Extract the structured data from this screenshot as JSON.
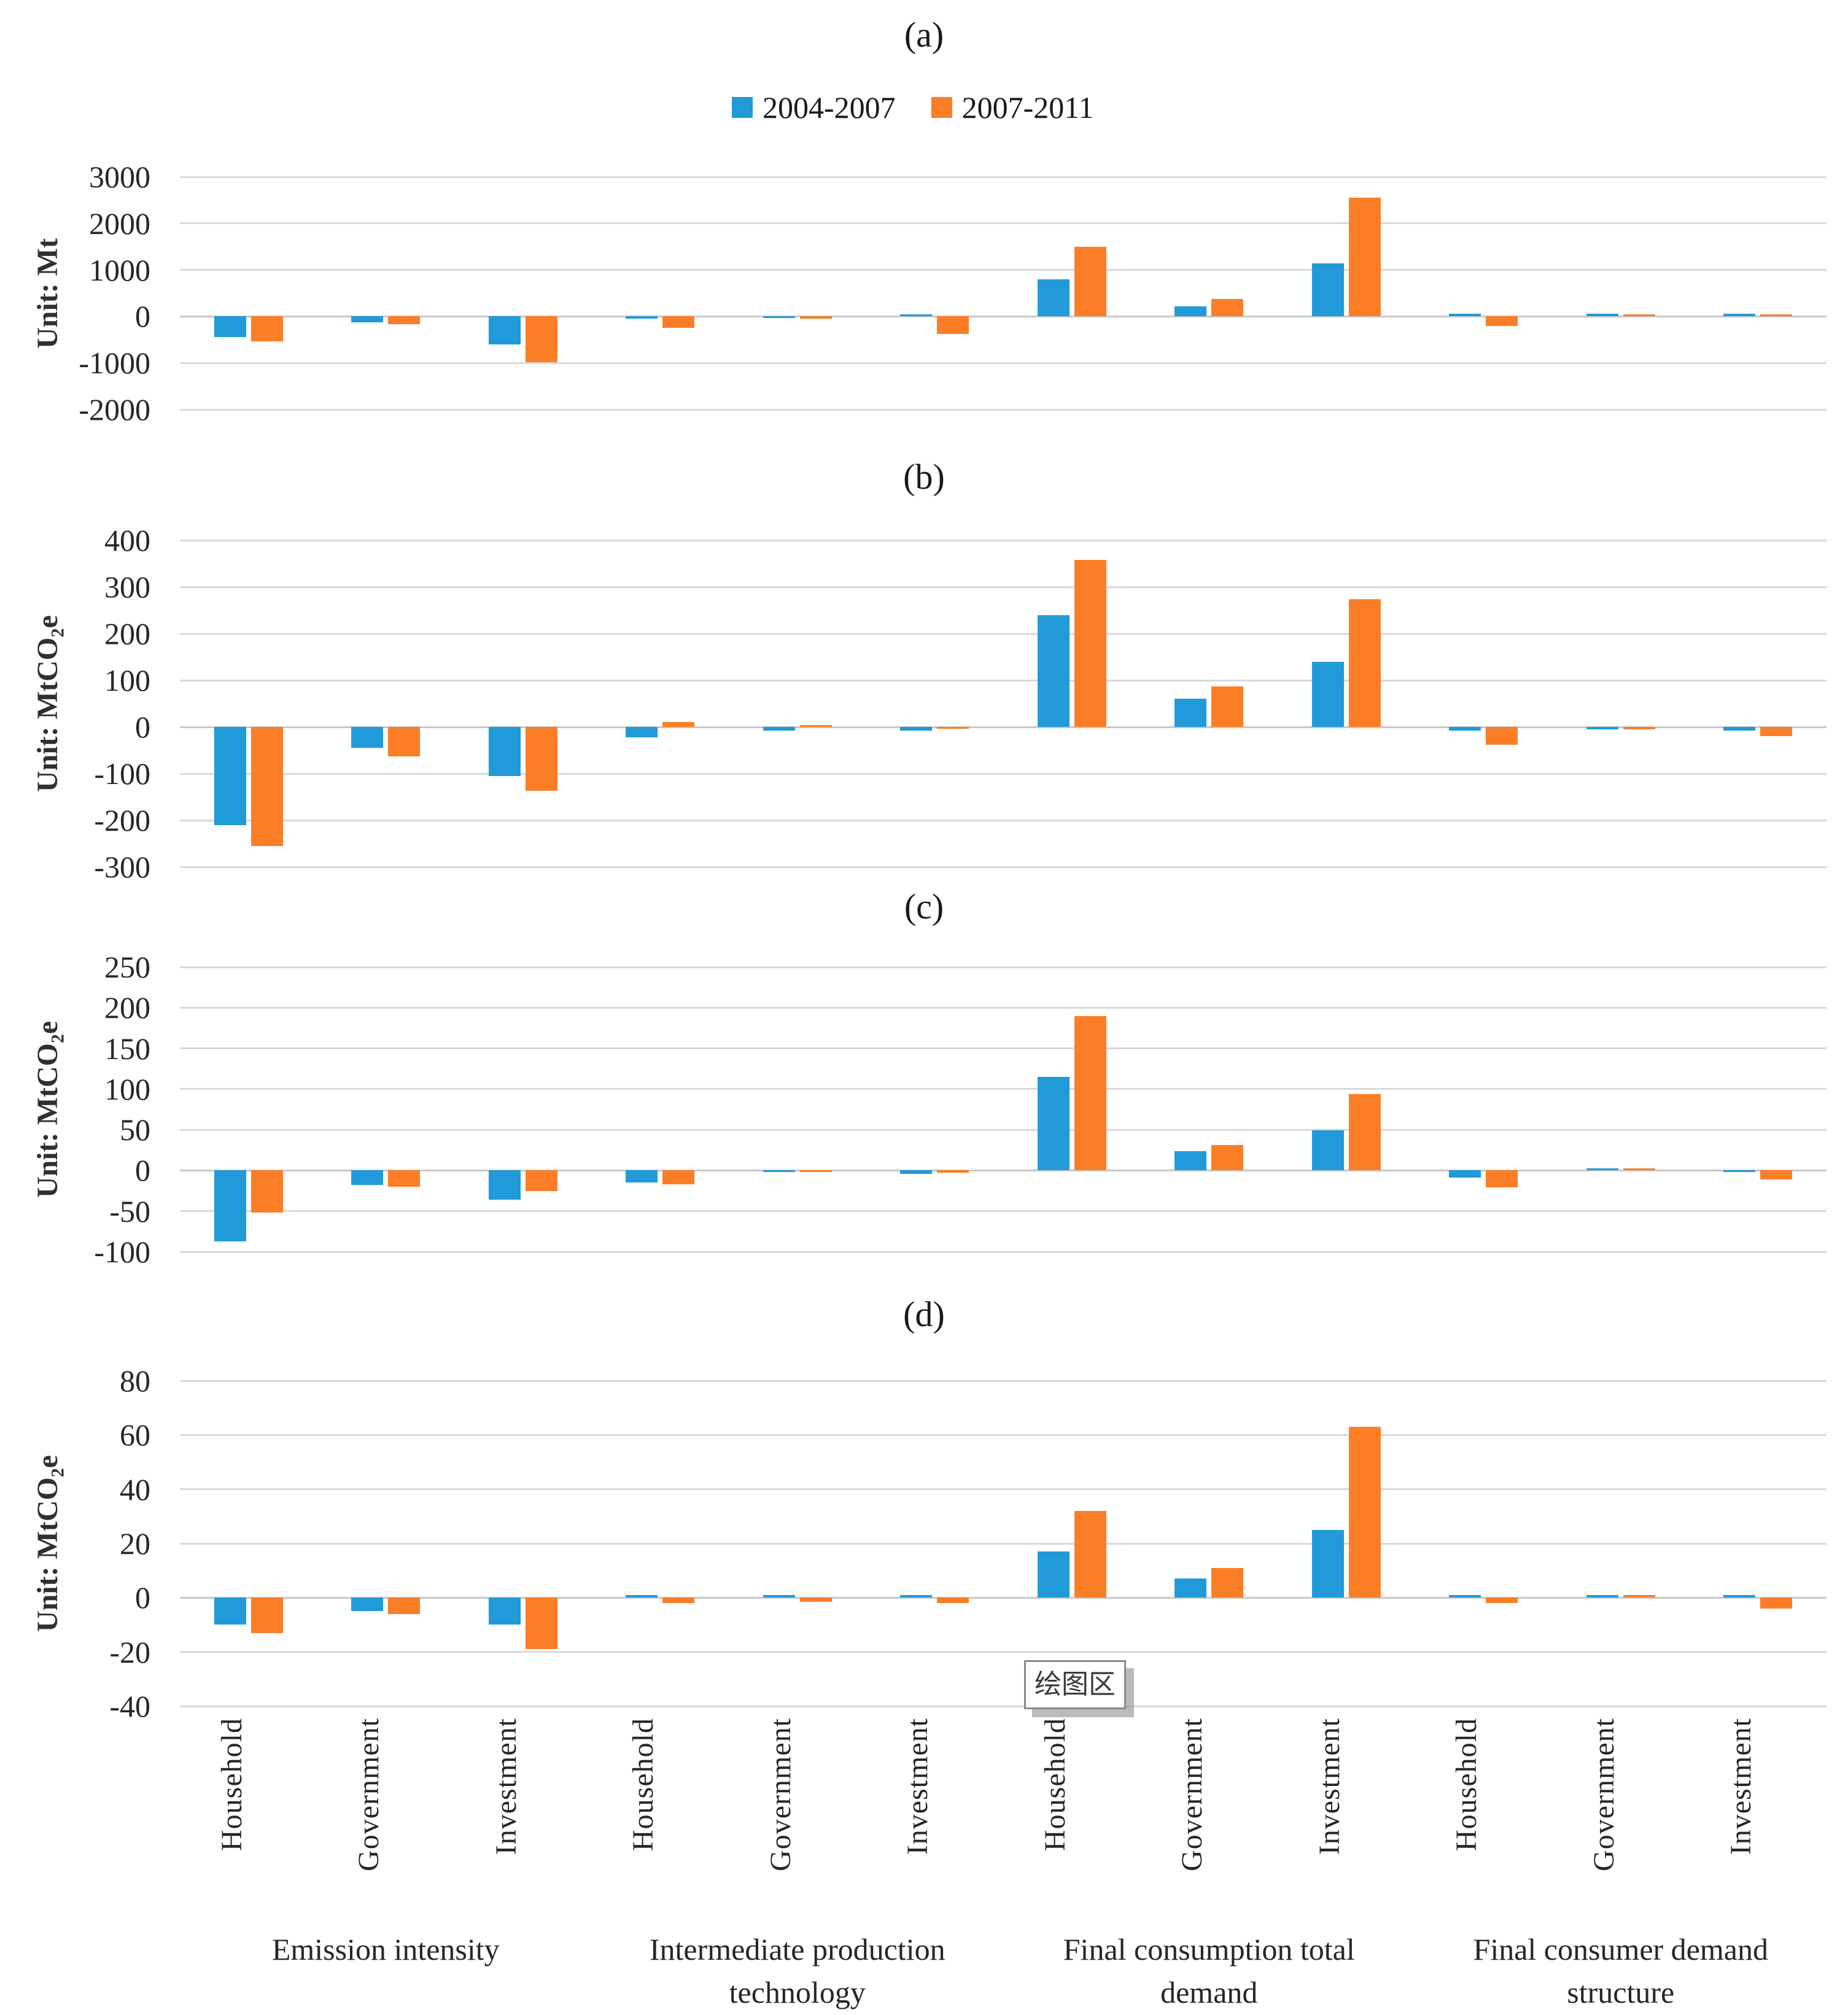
{
  "figure": {
    "legend": [
      {
        "label": "2004-2007",
        "color": "#219AD9"
      },
      {
        "label": "2007-2011",
        "color": "#FB7E27"
      }
    ],
    "tooltip_text": "绘图区"
  },
  "chart_data": {
    "type": "bar",
    "grid": "horizontal",
    "legend_position": "top",
    "categories": [
      "Household",
      "Government",
      "Investment",
      "Household",
      "Government",
      "Investment",
      "Household",
      "Government",
      "Investment",
      "Household",
      "Government",
      "Investment"
    ],
    "category_groups": [
      {
        "label": "Emission intensity",
        "lines": [
          "Emission intensity"
        ]
      },
      {
        "label": "Intermediate production technology",
        "lines": [
          "Intermediate production",
          "technology"
        ]
      },
      {
        "label": "Final consumption total demand",
        "lines": [
          "Final consumption total",
          "demand"
        ]
      },
      {
        "label": "Final consumer demand structure",
        "lines": [
          "Final consumer demand",
          "structure"
        ]
      }
    ],
    "panels": [
      {
        "id": "a",
        "title": "(a)",
        "ylabel": "Unit: Mt",
        "ylabel_parts": {
          "prefix": "Unit: Mt",
          "sub": "",
          "suffix": ""
        },
        "ylim": [
          -2000,
          3000
        ],
        "ytick_step": 1000,
        "series": [
          {
            "name": "2004-2007",
            "values": [
              -440,
              -130,
              -600,
              -45,
              -25,
              45,
              800,
              220,
              1145,
              55,
              55,
              60
            ]
          },
          {
            "name": "2007-2011",
            "values": [
              -530,
              -160,
              -990,
              -240,
              -45,
              -375,
              1500,
              375,
              2550,
              -200,
              50,
              50
            ]
          }
        ]
      },
      {
        "id": "b",
        "title": "(b)",
        "ylabel": "Unit: MtCO2e",
        "ylabel_parts": {
          "prefix": "Unit: MtCO",
          "sub": "2",
          "suffix": "e"
        },
        "ylim": [
          -300,
          400
        ],
        "ytick_step": 100,
        "series": [
          {
            "name": "2004-2007",
            "values": [
              -210,
              -45,
              -105,
              -23,
              -8,
              -8,
              240,
              61,
              140,
              -8,
              -5,
              -8
            ]
          },
          {
            "name": "2007-2011",
            "values": [
              -255,
              -63,
              -137,
              11,
              3,
              -4,
              358,
              87,
              274,
              -38,
              -5,
              -20
            ]
          }
        ]
      },
      {
        "id": "c",
        "title": "(c)",
        "ylabel": "Unit: MtCO2e",
        "ylabel_parts": {
          "prefix": "Unit: MtCO",
          "sub": "2",
          "suffix": "e"
        },
        "ylim": [
          -100,
          250
        ],
        "ytick_step": 50,
        "series": [
          {
            "name": "2004-2007",
            "values": [
              -87,
              -18,
              -36,
              -15,
              -2,
              -4,
              115,
              24,
              49,
              -9,
              2,
              -2
            ]
          },
          {
            "name": "2007-2011",
            "values": [
              -52,
              -20,
              -25,
              -17,
              -2,
              -3,
              190,
              31,
              94,
              -21,
              2,
              -11
            ]
          }
        ]
      },
      {
        "id": "d",
        "title": "(d)",
        "ylabel": "Unit: MtCO2e",
        "ylabel_parts": {
          "prefix": "Unit: MtCO",
          "sub": "2",
          "suffix": "e"
        },
        "ylim": [
          -40,
          80
        ],
        "ytick_step": 20,
        "series": [
          {
            "name": "2004-2007",
            "values": [
              -10,
              -5,
              -10,
              1,
              1,
              1,
              17,
              7,
              25,
              1,
              1,
              1
            ]
          },
          {
            "name": "2007-2011",
            "values": [
              -13,
              -6,
              -19,
              -2,
              -1.5,
              -2,
              32,
              11,
              63,
              -2,
              1,
              -4
            ]
          }
        ]
      }
    ]
  }
}
